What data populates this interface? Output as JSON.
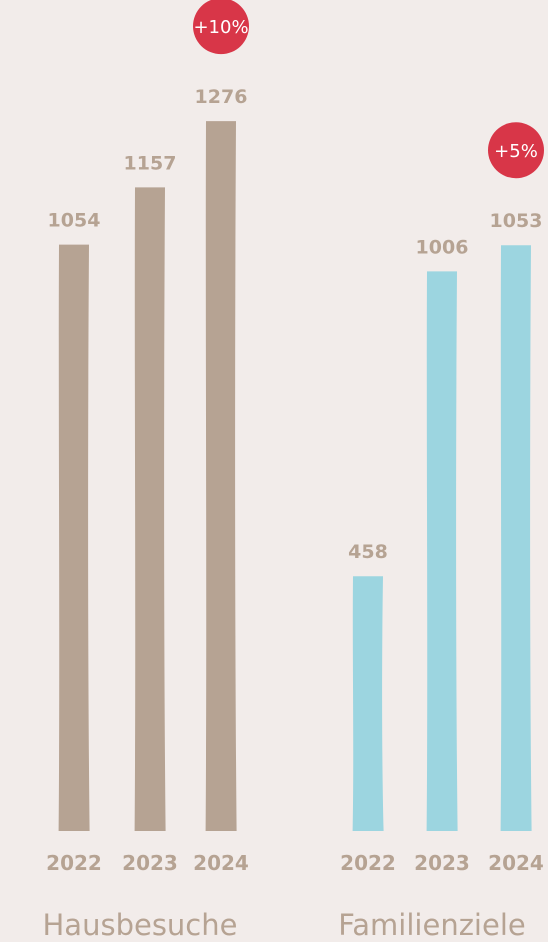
{
  "colors": {
    "background": "#f2ecea",
    "bar_tan": "#b6a393",
    "bar_blue": "#9cd5e0",
    "value_label": "#b6a393",
    "badge": "#d83648",
    "badge_text": "#ffffff",
    "title": "#b6a393"
  },
  "chart_data": [
    {
      "type": "bar",
      "title": "Hausbesuche",
      "categories": [
        "2022",
        "2023",
        "2024"
      ],
      "values": [
        1054,
        1157,
        1276
      ],
      "data_labels": [
        "1054",
        "1157",
        "1276"
      ],
      "badge": {
        "text": "+10%",
        "category": "2024"
      },
      "color": "#b6a393",
      "ylim": [
        0,
        1300
      ],
      "grid": false
    },
    {
      "type": "bar",
      "title": "Familienziele",
      "categories": [
        "2022",
        "2023",
        "2024"
      ],
      "values": [
        458,
        1006,
        1053
      ],
      "data_labels": [
        "458",
        "1006",
        "1053"
      ],
      "badge": {
        "text": "+5%",
        "category": "2024"
      },
      "color": "#9cd5e0",
      "ylim": [
        0,
        1300
      ],
      "grid": false
    }
  ]
}
